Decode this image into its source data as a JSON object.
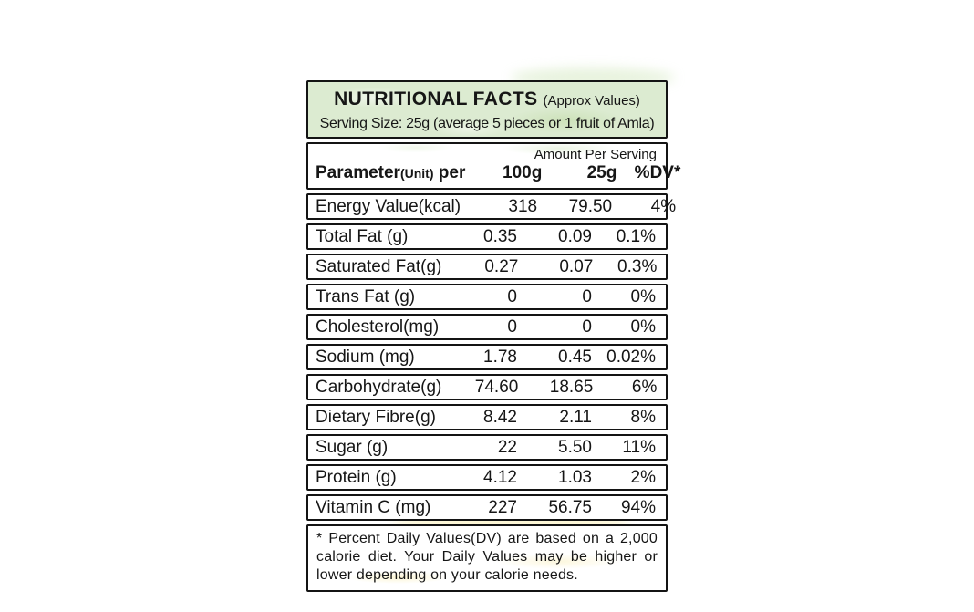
{
  "label": {
    "title": "NUTRITIONAL FACTS",
    "title_note": "(Approx Values)",
    "serving_line": "Serving Size: 25g (average 5 pieces or 1 fruit of Amla)",
    "columns": {
      "amount_per_serving": "Amount Per Serving",
      "parameter": "Parameter",
      "parameter_unit": "(Unit)",
      "per_word": "per",
      "per_100g": "100g",
      "per_25g": "25g",
      "dv": "%DV*"
    },
    "rows": [
      {
        "label": "Energy Value(kcal)",
        "per_100g": "318",
        "per_25g": "79.50",
        "dv": "4%"
      },
      {
        "label": "Total Fat (g)",
        "per_100g": "0.35",
        "per_25g": "0.09",
        "dv": "0.1%"
      },
      {
        "label": "Saturated Fat(g)",
        "per_100g": "0.27",
        "per_25g": "0.07",
        "dv": "0.3%"
      },
      {
        "label": "Trans Fat (g)",
        "per_100g": "0",
        "per_25g": "0",
        "dv": "0%"
      },
      {
        "label": "Cholesterol(mg)",
        "per_100g": "0",
        "per_25g": "0",
        "dv": "0%"
      },
      {
        "label": "Sodium (mg)",
        "per_100g": "1.78",
        "per_25g": "0.45",
        "dv": "0.02%"
      },
      {
        "label": "Carbohydrate(g)",
        "per_100g": "74.60",
        "per_25g": "18.65",
        "dv": "6%"
      },
      {
        "label": "Dietary Fibre(g)",
        "per_100g": "8.42",
        "per_25g": "2.11",
        "dv": "8%"
      },
      {
        "label": "Sugar (g)",
        "per_100g": "22",
        "per_25g": "5.50",
        "dv": "11%"
      },
      {
        "label": "Protein (g)",
        "per_100g": "4.12",
        "per_25g": "1.03",
        "dv": "2%"
      },
      {
        "label": "Vitamin C (mg)",
        "per_100g": "227",
        "per_25g": "56.75",
        "dv": "94%"
      }
    ],
    "footnote": "* Percent Daily Values(DV) are based on a 2,000 calorie diet. Your Daily Values may be higher or lower depending on your calorie needs.",
    "colors": {
      "header_bg": "#dcebd1",
      "border": "#141414",
      "watermark_green": "#bedca0",
      "watermark_yellow": "#f7e9a0"
    }
  }
}
